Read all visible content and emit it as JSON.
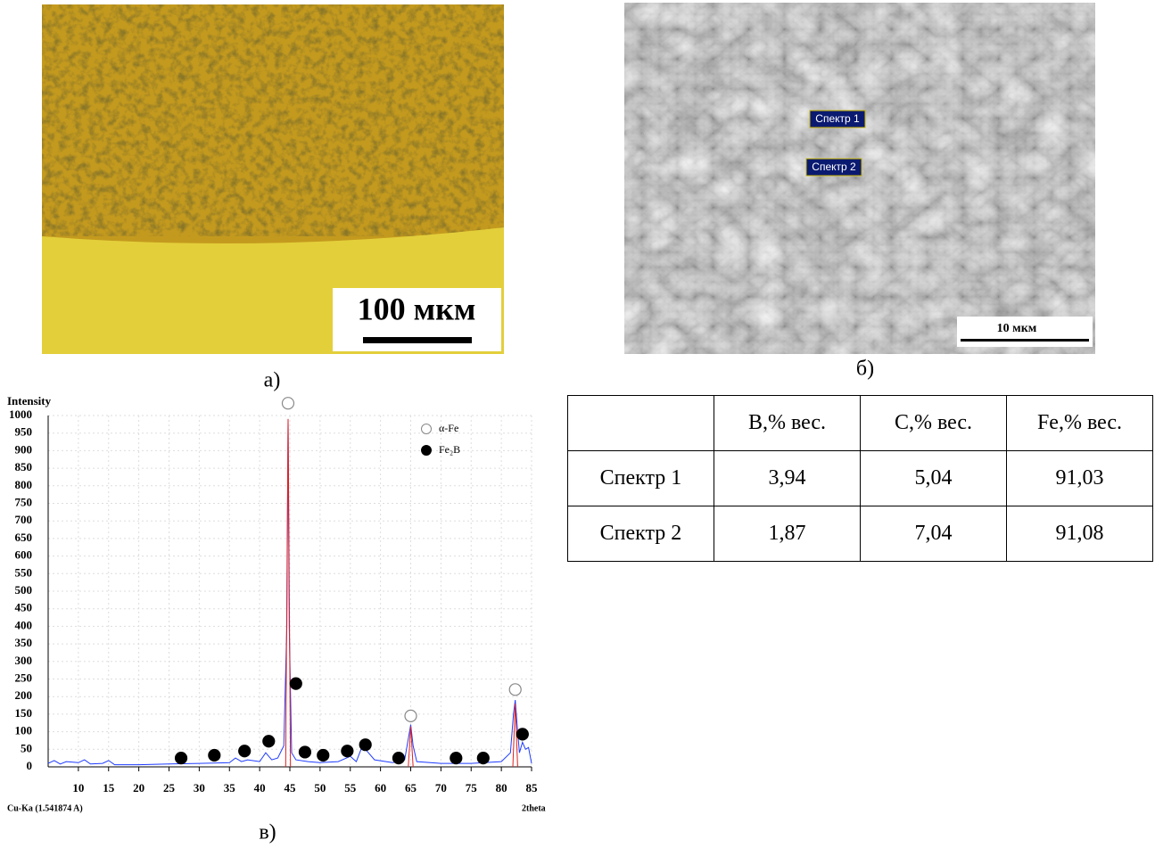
{
  "panels": {
    "a": {
      "label": "а)",
      "scale_bar": "100 мкм"
    },
    "b": {
      "label": "б)",
      "spectra": [
        "Спектр 1",
        "Спектр 2"
      ],
      "scale_bar": "10 мкм"
    },
    "c": {
      "label": "в)"
    }
  },
  "table": {
    "header": [
      "B,% вес.",
      "C,% вес.",
      "Fe,% вес."
    ],
    "rows": [
      [
        "Спектр 1",
        "3,94",
        "5,04",
        "91,03"
      ],
      [
        "Спектр 2",
        "1,87",
        "7,04",
        "91,08"
      ]
    ]
  },
  "chart_data": {
    "type": "line",
    "y_label": "Intensity",
    "x_label": "2theta",
    "note": "Cu-Ka (1.541874 A)",
    "xlim": [
      5,
      85
    ],
    "ylim": [
      0,
      1000
    ],
    "xticks": [
      10,
      15,
      20,
      25,
      30,
      35,
      40,
      45,
      50,
      55,
      60,
      65,
      70,
      75,
      80,
      85
    ],
    "yticks": [
      0,
      50,
      100,
      150,
      200,
      250,
      300,
      350,
      400,
      450,
      500,
      550,
      600,
      650,
      700,
      750,
      800,
      850,
      900,
      950,
      1000
    ],
    "grid": true,
    "legend": "top-right",
    "series": [
      {
        "color": "#1f3cff",
        "x": [
          5,
          6,
          7,
          8,
          10,
          11,
          12,
          14,
          15,
          16,
          20,
          25,
          30,
          35,
          36,
          37,
          38,
          40,
          41,
          42,
          43,
          44,
          44.5,
          44.7,
          44.9,
          45.3,
          46,
          48,
          50,
          53,
          55,
          56,
          57,
          58,
          59,
          62,
          64,
          64.6,
          65,
          65.4,
          66,
          70,
          75,
          80,
          81.5,
          82,
          82.3,
          82.7,
          83,
          83.5,
          84,
          84.5,
          85
        ],
        "values": [
          10,
          18,
          8,
          15,
          12,
          20,
          8,
          10,
          18,
          6,
          6,
          8,
          10,
          12,
          25,
          15,
          20,
          15,
          40,
          20,
          25,
          60,
          400,
          990,
          400,
          40,
          20,
          15,
          12,
          15,
          30,
          15,
          60,
          40,
          20,
          12,
          20,
          80,
          120,
          60,
          15,
          10,
          10,
          15,
          40,
          150,
          190,
          100,
          40,
          70,
          50,
          55,
          10
        ]
      },
      {
        "color": "#e02020",
        "x": [
          44.3,
          44.7,
          45.1,
          55,
          64.6,
          65,
          65.4,
          75,
          81.9,
          82.3,
          82.7
        ],
        "values": [
          0,
          990,
          0,
          null,
          0,
          115,
          0,
          null,
          0,
          180,
          0
        ]
      },
      {
        "name": "α-Fe",
        "marker": "open-circle",
        "color": "#888888",
        "x": [
          44.7,
          65,
          82.3
        ],
        "values": [
          1035,
          145,
          220
        ]
      },
      {
        "name": "Fe₂B",
        "marker": "filled-circle",
        "color": "#000000",
        "x": [
          27,
          32.5,
          37.5,
          41.5,
          46,
          47.5,
          50.5,
          54.5,
          57.5,
          63,
          72.5,
          77,
          83.5
        ],
        "values": [
          25,
          33,
          45,
          73,
          237,
          42,
          33,
          45,
          63,
          25,
          25,
          25,
          93
        ]
      }
    ]
  }
}
